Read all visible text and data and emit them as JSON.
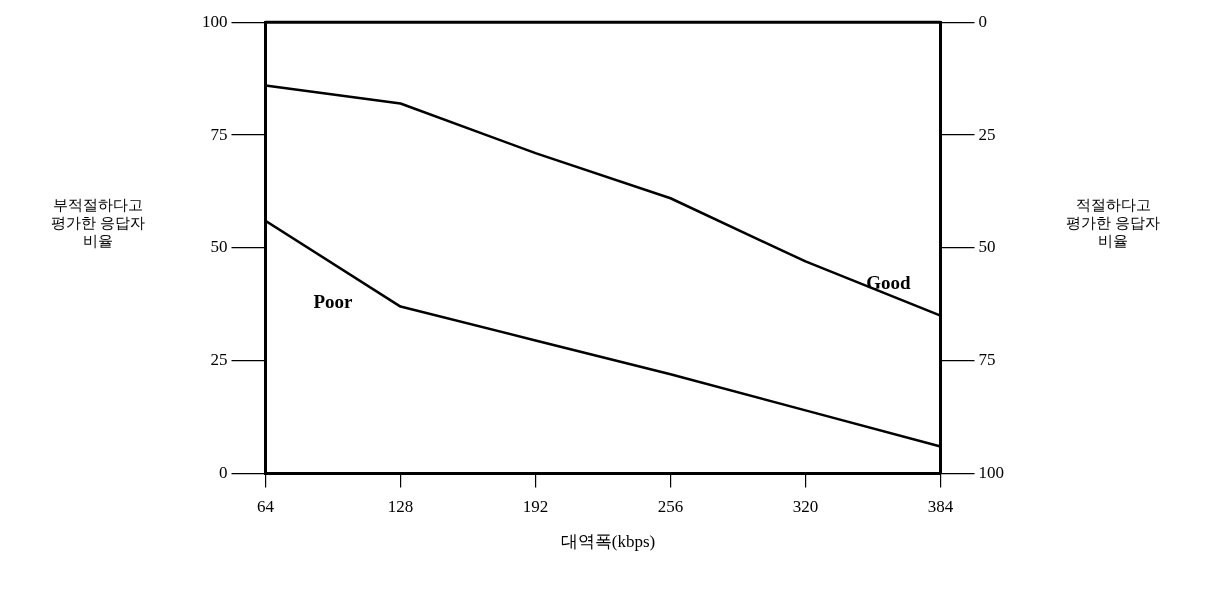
{
  "chart_data": {
    "type": "line",
    "xlabel": "대역폭(kbps)",
    "ylabel": "부적절하다고\n평가한 응답자\n비율",
    "y2label": "적절하다고\n평가한 응답자\n비율",
    "x": [
      64,
      128,
      192,
      256,
      320,
      384
    ],
    "series": [
      {
        "name": "Good",
        "color": "#000000",
        "values": [
          86,
          82,
          71,
          61,
          47,
          35
        ]
      },
      {
        "name": "Poor",
        "color": "#000000",
        "values": [
          56,
          37,
          29.5,
          22,
          14,
          6
        ]
      }
    ],
    "xlim": [
      64,
      384
    ],
    "xticks": [
      64,
      128,
      192,
      256,
      320,
      384
    ],
    "ylim": [
      0,
      100
    ],
    "yticks": [
      0,
      25,
      50,
      75,
      100
    ],
    "y2lim": [
      100,
      0
    ],
    "y2ticks": [
      0,
      25,
      50,
      75,
      100
    ],
    "grid": false,
    "legend": false,
    "marker": "none",
    "line_style": "solid"
  }
}
